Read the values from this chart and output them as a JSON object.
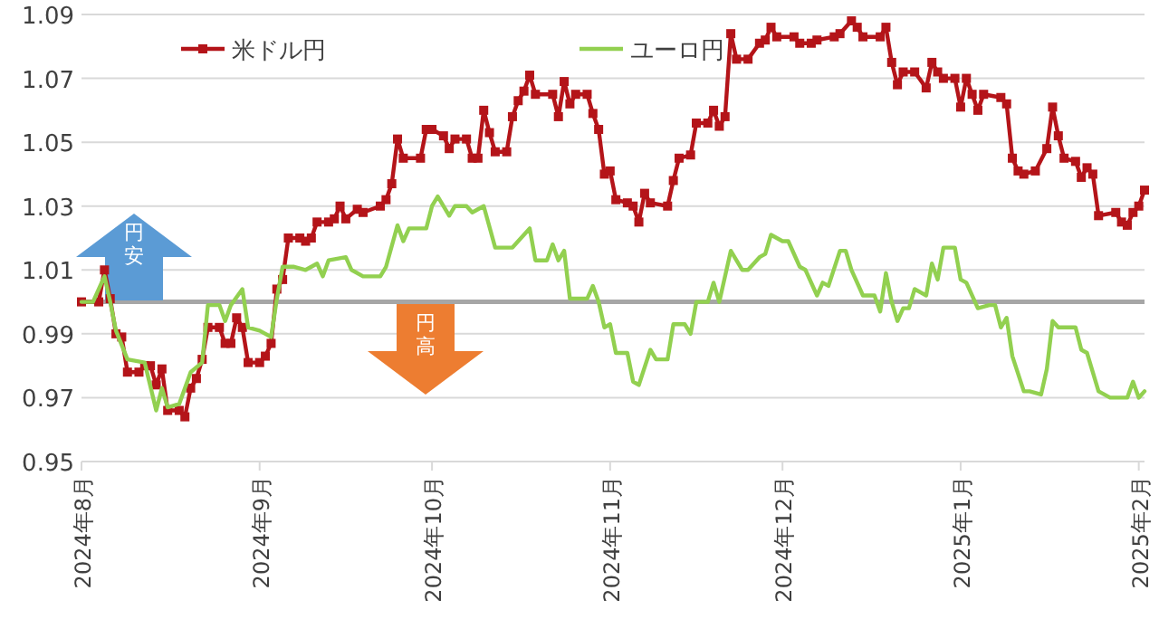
{
  "chart_data": {
    "type": "line",
    "xlim": [
      "2024-08-01",
      "2025-02-02"
    ],
    "ylim": [
      0.95,
      1.09
    ],
    "yticks": [
      0.95,
      0.97,
      0.99,
      1.01,
      1.03,
      1.05,
      1.07,
      1.09
    ],
    "xticks": [
      {
        "value": "2024-08-01",
        "label": "2024年8月"
      },
      {
        "value": "2024-09-01",
        "label": "2024年9月"
      },
      {
        "value": "2024-10-01",
        "label": "2024年10月"
      },
      {
        "value": "2024-11-01",
        "label": "2024年11月"
      },
      {
        "value": "2024-12-01",
        "label": "2024年12月"
      },
      {
        "value": "2025-01-01",
        "label": "2025年1月"
      },
      {
        "value": "2025-02-01",
        "label": "2025年2月"
      }
    ],
    "grid": "y",
    "legend": "top left",
    "ref_lines": [
      {
        "axis": "y",
        "value": 1.0,
        "color": "#a6a6a6"
      }
    ],
    "annotations": [
      "円安",
      "円高"
    ],
    "series": [
      {
        "name": "米ドル円",
        "color": "#b41419",
        "marker": "square",
        "x": [
          "2024-08-01",
          "2024-08-04",
          "2024-08-05",
          "2024-08-06",
          "2024-08-07",
          "2024-08-08",
          "2024-08-09",
          "2024-08-11",
          "2024-08-12",
          "2024-08-13",
          "2024-08-14",
          "2024-08-15",
          "2024-08-16",
          "2024-08-18",
          "2024-08-19",
          "2024-08-20",
          "2024-08-21",
          "2024-08-22",
          "2024-08-23",
          "2024-08-25",
          "2024-08-26",
          "2024-08-27",
          "2024-08-28",
          "2024-08-29",
          "2024-08-30",
          "2024-09-01",
          "2024-09-02",
          "2024-09-03",
          "2024-09-04",
          "2024-09-05",
          "2024-09-06",
          "2024-09-08",
          "2024-09-09",
          "2024-09-10",
          "2024-09-11",
          "2024-09-13",
          "2024-09-14",
          "2024-09-15",
          "2024-09-16",
          "2024-09-18",
          "2024-09-19",
          "2024-09-22",
          "2024-09-23",
          "2024-09-24",
          "2024-09-25",
          "2024-09-26",
          "2024-09-29",
          "2024-09-30",
          "2024-10-01",
          "2024-10-03",
          "2024-10-04",
          "2024-10-05",
          "2024-10-07",
          "2024-10-08",
          "2024-10-09",
          "2024-10-10",
          "2024-10-11",
          "2024-10-12",
          "2024-10-14",
          "2024-10-15",
          "2024-10-16",
          "2024-10-17",
          "2024-10-18",
          "2024-10-19",
          "2024-10-22",
          "2024-10-23",
          "2024-10-24",
          "2024-10-25",
          "2024-10-26",
          "2024-10-28",
          "2024-10-29",
          "2024-10-30",
          "2024-10-31",
          "2024-11-01",
          "2024-11-02",
          "2024-11-04",
          "2024-11-05",
          "2024-11-06",
          "2024-11-07",
          "2024-11-08",
          "2024-11-11",
          "2024-11-12",
          "2024-11-13",
          "2024-11-15",
          "2024-11-16",
          "2024-11-18",
          "2024-11-19",
          "2024-11-20",
          "2024-11-21",
          "2024-11-22",
          "2024-11-23",
          "2024-11-25",
          "2024-11-27",
          "2024-11-28",
          "2024-11-29",
          "2024-11-30",
          "2024-12-03",
          "2024-12-04",
          "2024-12-06",
          "2024-12-07",
          "2024-12-10",
          "2024-12-11",
          "2024-12-13",
          "2024-12-14",
          "2024-12-15",
          "2024-12-18",
          "2024-12-19",
          "2024-12-20",
          "2024-12-21",
          "2024-12-22",
          "2024-12-24",
          "2024-12-26",
          "2024-12-27",
          "2024-12-28",
          "2024-12-29",
          "2024-12-31",
          "2025-01-01",
          "2025-01-02",
          "2025-01-03",
          "2025-01-04",
          "2025-01-05",
          "2025-01-08",
          "2025-01-09",
          "2025-01-10",
          "2025-01-11",
          "2025-01-12",
          "2025-01-14",
          "2025-01-16",
          "2025-01-17",
          "2025-01-18",
          "2025-01-19",
          "2025-01-21",
          "2025-01-22",
          "2025-01-23",
          "2025-01-24",
          "2025-01-25",
          "2025-01-28",
          "2025-01-29",
          "2025-01-30",
          "2025-01-31",
          "2025-02-01",
          "2025-02-02"
        ],
        "values": [
          1.0,
          1.0,
          1.01,
          1.001,
          0.99,
          0.989,
          0.978,
          0.978,
          0.98,
          0.98,
          0.974,
          0.979,
          0.966,
          0.966,
          0.964,
          0.973,
          0.976,
          0.982,
          0.992,
          0.992,
          0.987,
          0.987,
          0.995,
          0.992,
          0.981,
          0.981,
          0.983,
          0.987,
          1.004,
          1.007,
          1.02,
          1.02,
          1.019,
          1.02,
          1.025,
          1.025,
          1.026,
          1.03,
          1.026,
          1.029,
          1.028,
          1.03,
          1.032,
          1.037,
          1.051,
          1.045,
          1.045,
          1.054,
          1.054,
          1.052,
          1.048,
          1.051,
          1.051,
          1.045,
          1.045,
          1.06,
          1.053,
          1.047,
          1.047,
          1.058,
          1.063,
          1.066,
          1.071,
          1.065,
          1.065,
          1.058,
          1.069,
          1.062,
          1.065,
          1.065,
          1.059,
          1.054,
          1.04,
          1.041,
          1.032,
          1.031,
          1.03,
          1.025,
          1.034,
          1.031,
          1.03,
          1.038,
          1.045,
          1.046,
          1.056,
          1.056,
          1.06,
          1.055,
          1.058,
          1.084,
          1.076,
          1.076,
          1.081,
          1.082,
          1.086,
          1.083,
          1.083,
          1.081,
          1.081,
          1.082,
          1.083,
          1.084,
          1.088,
          1.086,
          1.083,
          1.083,
          1.086,
          1.075,
          1.068,
          1.072,
          1.072,
          1.067,
          1.075,
          1.072,
          1.07,
          1.07,
          1.061,
          1.07,
          1.065,
          1.06,
          1.065,
          1.064,
          1.062,
          1.045,
          1.041,
          1.04,
          1.041,
          1.048,
          1.061,
          1.052,
          1.045,
          1.044,
          1.039,
          1.042,
          1.04,
          1.027,
          1.028,
          1.025,
          1.024,
          1.028,
          1.03,
          1.035
        ]
      },
      {
        "name": "ユーロ円",
        "color": "#92d050",
        "marker": "none",
        "x": [
          "2024-08-01",
          "2024-08-03",
          "2024-08-05",
          "2024-08-06",
          "2024-08-07",
          "2024-08-09",
          "2024-08-12",
          "2024-08-14",
          "2024-08-15",
          "2024-08-16",
          "2024-08-18",
          "2024-08-20",
          "2024-08-22",
          "2024-08-23",
          "2024-08-25",
          "2024-08-26",
          "2024-08-27",
          "2024-08-29",
          "2024-08-30",
          "2024-09-01",
          "2024-09-03",
          "2024-09-04",
          "2024-09-05",
          "2024-09-07",
          "2024-09-09",
          "2024-09-11",
          "2024-09-12",
          "2024-09-13",
          "2024-09-16",
          "2024-09-17",
          "2024-09-19",
          "2024-09-22",
          "2024-09-23",
          "2024-09-25",
          "2024-09-26",
          "2024-09-27",
          "2024-09-30",
          "2024-10-01",
          "2024-10-02",
          "2024-10-04",
          "2024-10-05",
          "2024-10-07",
          "2024-10-08",
          "2024-10-10",
          "2024-10-12",
          "2024-10-15",
          "2024-10-18",
          "2024-10-19",
          "2024-10-21",
          "2024-10-22",
          "2024-10-23",
          "2024-10-24",
          "2024-10-25",
          "2024-10-28",
          "2024-10-29",
          "2024-10-30",
          "2024-10-31",
          "2024-11-01",
          "2024-11-02",
          "2024-11-04",
          "2024-11-05",
          "2024-11-06",
          "2024-11-08",
          "2024-11-09",
          "2024-11-11",
          "2024-11-12",
          "2024-11-14",
          "2024-11-15",
          "2024-11-16",
          "2024-11-18",
          "2024-11-19",
          "2024-11-20",
          "2024-11-22",
          "2024-11-24",
          "2024-11-25",
          "2024-11-27",
          "2024-11-28",
          "2024-11-29",
          "2024-12-01",
          "2024-12-02",
          "2024-12-04",
          "2024-12-05",
          "2024-12-07",
          "2024-12-08",
          "2024-12-09",
          "2024-12-11",
          "2024-12-12",
          "2024-12-13",
          "2024-12-15",
          "2024-12-17",
          "2024-12-18",
          "2024-12-19",
          "2024-12-20",
          "2024-12-21",
          "2024-12-22",
          "2024-12-23",
          "2024-12-24",
          "2024-12-26",
          "2024-12-27",
          "2024-12-28",
          "2024-12-29",
          "2024-12-31",
          "2025-01-01",
          "2025-01-02",
          "2025-01-04",
          "2025-01-06",
          "2025-01-07",
          "2025-01-08",
          "2025-01-09",
          "2025-01-10",
          "2025-01-12",
          "2025-01-13",
          "2025-01-15",
          "2025-01-16",
          "2025-01-17",
          "2025-01-18",
          "2025-01-21",
          "2025-01-22",
          "2025-01-23",
          "2025-01-25",
          "2025-01-27",
          "2025-01-30",
          "2025-01-31",
          "2025-02-01",
          "2025-02-02"
        ],
        "values": [
          1.0,
          1.0,
          1.008,
          1.0,
          0.991,
          0.982,
          0.981,
          0.966,
          0.973,
          0.967,
          0.968,
          0.978,
          0.981,
          0.999,
          0.999,
          0.994,
          0.999,
          1.004,
          0.992,
          0.991,
          0.989,
          1.001,
          1.011,
          1.011,
          1.01,
          1.012,
          1.008,
          1.013,
          1.014,
          1.01,
          1.008,
          1.008,
          1.011,
          1.024,
          1.019,
          1.023,
          1.023,
          1.03,
          1.033,
          1.027,
          1.03,
          1.03,
          1.028,
          1.03,
          1.017,
          1.017,
          1.023,
          1.013,
          1.013,
          1.018,
          1.013,
          1.016,
          1.001,
          1.001,
          1.005,
          1.0,
          0.992,
          0.993,
          0.984,
          0.984,
          0.975,
          0.974,
          0.985,
          0.982,
          0.982,
          0.993,
          0.993,
          0.99,
          1.0,
          1.0,
          1.006,
          1.0,
          1.016,
          1.01,
          1.01,
          1.014,
          1.015,
          1.021,
          1.019,
          1.019,
          1.011,
          1.01,
          1.002,
          1.006,
          1.005,
          1.016,
          1.016,
          1.01,
          1.002,
          1.002,
          0.997,
          1.009,
          1.0,
          0.994,
          0.998,
          0.998,
          1.004,
          1.002,
          1.012,
          1.007,
          1.017,
          1.017,
          1.007,
          1.006,
          0.998,
          0.999,
          0.999,
          0.992,
          0.995,
          0.983,
          0.972,
          0.972,
          0.971,
          0.979,
          0.994,
          0.992,
          0.992,
          0.985,
          0.984,
          0.972,
          0.97,
          0.97,
          0.975,
          0.97,
          0.972
        ]
      }
    ]
  }
}
